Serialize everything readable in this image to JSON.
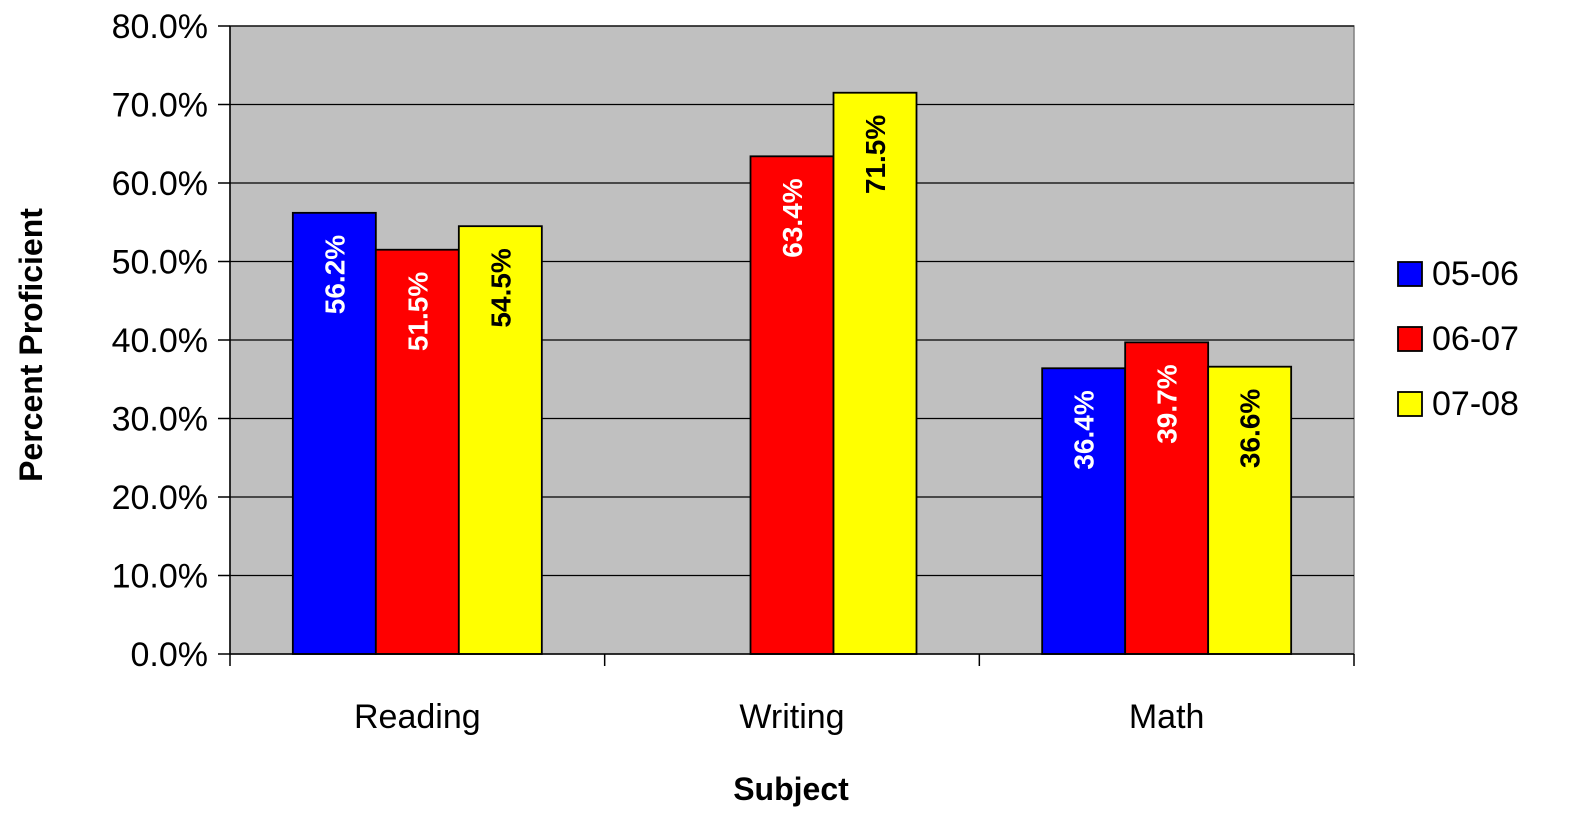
{
  "chart_data": {
    "type": "bar",
    "title": "",
    "xlabel": "Subject",
    "ylabel": "Percent Proficient",
    "categories": [
      "Reading",
      "Writing",
      "Math"
    ],
    "series": [
      {
        "name": "05-06",
        "values": [
          56.2,
          null,
          36.4
        ],
        "color": "#0000ff",
        "label_color": "#ffffff"
      },
      {
        "name": "06-07",
        "values": [
          51.5,
          63.4,
          39.7
        ],
        "color": "#ff0000",
        "label_color": "#ffffff"
      },
      {
        "name": "07-08",
        "values": [
          54.5,
          71.5,
          36.6
        ],
        "color": "#ffff00",
        "label_color": "#000000"
      }
    ],
    "value_format": "percent_1dp",
    "ylim": [
      0,
      80
    ],
    "yticks": [
      0,
      10,
      20,
      30,
      40,
      50,
      60,
      70,
      80
    ],
    "ytick_labels": [
      "0.0%",
      "10.0%",
      "20.0%",
      "30.0%",
      "40.0%",
      "50.0%",
      "60.0%",
      "70.0%",
      "80.0%"
    ],
    "grid": true,
    "plot_background": "#c0c0c0",
    "legend_position": "right"
  }
}
